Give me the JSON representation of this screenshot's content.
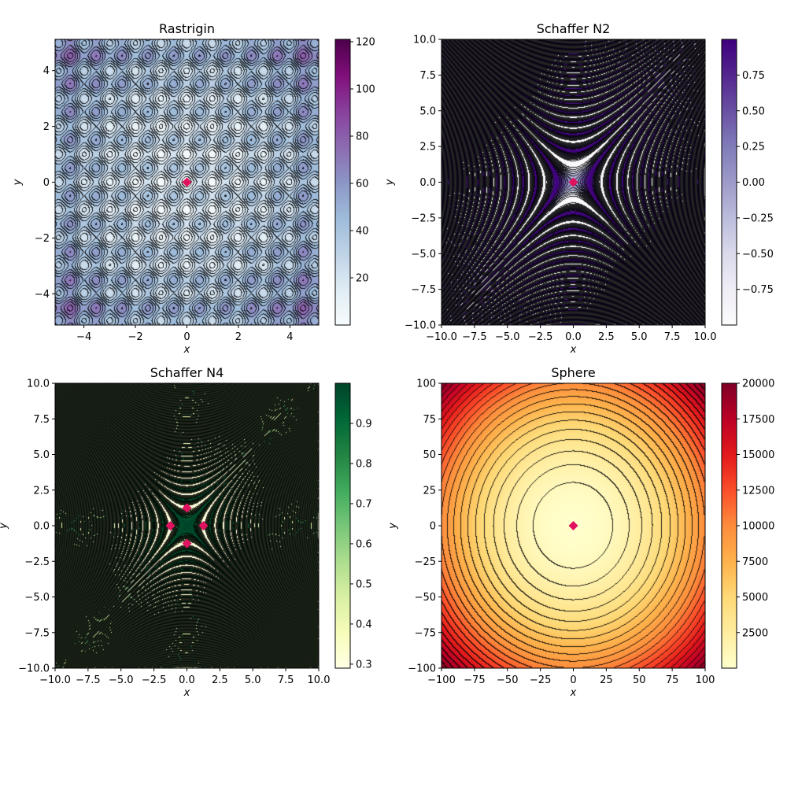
{
  "chart_data": [
    {
      "type": "heatmap",
      "title": "Rastrigin",
      "function": "rastrigin",
      "xlabel": "x",
      "ylabel": "y",
      "xlim": [
        -5.12,
        5.12
      ],
      "ylim": [
        -5.12,
        5.12
      ],
      "xticks": [
        -4,
        -2,
        0,
        2,
        4
      ],
      "xtick_labels": [
        "−4",
        "−2",
        "0",
        "2",
        "4"
      ],
      "yticks": [
        -4,
        -2,
        0,
        2,
        4
      ],
      "ytick_labels": [
        "−4",
        "−2",
        "0",
        "2",
        "4"
      ],
      "colormap": "BuPu",
      "colormap_stops": [
        "#f7fcfd",
        "#e0ecf4",
        "#bfd3e6",
        "#9ebcda",
        "#8c96c6",
        "#8c6bb1",
        "#88419d",
        "#810f7c",
        "#4d004b"
      ],
      "colorbar_range": [
        0,
        121
      ],
      "colorbar_ticks": [
        20,
        40,
        60,
        80,
        100,
        120
      ],
      "colorbar_tick_labels": [
        "20",
        "40",
        "60",
        "80",
        "100",
        "120"
      ],
      "contour_lines": true,
      "contour_levels": 20,
      "minima": [
        {
          "x": 0,
          "y": 0
        }
      ],
      "marker_color": "#e0115f"
    },
    {
      "type": "heatmap",
      "title": "Schaffer N2",
      "function": "schaffer2",
      "xlabel": "x",
      "ylabel": "y",
      "xlim": [
        -10,
        10
      ],
      "ylim": [
        -10,
        10
      ],
      "xticks": [
        -10,
        -7.5,
        -5,
        -2.5,
        0,
        2.5,
        5,
        7.5,
        10
      ],
      "xtick_labels": [
        "−10.0",
        "−7.5",
        "−5.0",
        "−2.5",
        "0.0",
        "2.5",
        "5.0",
        "7.5",
        "10.0"
      ],
      "yticks": [
        -10,
        -7.5,
        -5,
        -2.5,
        0,
        2.5,
        5,
        7.5,
        10
      ],
      "ytick_labels": [
        "−10.0",
        "−7.5",
        "−5.0",
        "−2.5",
        "0.0",
        "2.5",
        "5.0",
        "7.5",
        "10.0"
      ],
      "colormap": "Purples",
      "colormap_stops": [
        "#fcfbfd",
        "#efedf5",
        "#dadaeb",
        "#bcbddc",
        "#9e9ac8",
        "#807dba",
        "#6a51a3",
        "#54278f",
        "#3f007d"
      ],
      "colorbar_range": [
        -1,
        1
      ],
      "colorbar_ticks": [
        -0.75,
        -0.5,
        -0.25,
        0,
        0.25,
        0.5,
        0.75
      ],
      "colorbar_tick_labels": [
        "−0.75",
        "−0.50",
        "−0.25",
        "0.00",
        "0.25",
        "0.50",
        "0.75"
      ],
      "contour_lines": true,
      "contour_levels": 12,
      "minima": [
        {
          "x": 0,
          "y": 0
        }
      ],
      "marker_color": "#e0115f"
    },
    {
      "type": "heatmap",
      "title": "Schaffer N4",
      "function": "schaffer4",
      "xlabel": "x",
      "ylabel": "y",
      "xlim": [
        -10,
        10
      ],
      "ylim": [
        -10,
        10
      ],
      "xticks": [
        -10,
        -7.5,
        -5,
        -2.5,
        0,
        2.5,
        5,
        7.5,
        10
      ],
      "xtick_labels": [
        "−10.0",
        "−7.5",
        "−5.0",
        "−2.5",
        "0.0",
        "2.5",
        "5.0",
        "7.5",
        "10.0"
      ],
      "yticks": [
        -10,
        -7.5,
        -5,
        -2.5,
        0,
        2.5,
        5,
        7.5,
        10
      ],
      "ytick_labels": [
        "−10.0",
        "−7.5",
        "−5.0",
        "−2.5",
        "0.0",
        "2.5",
        "5.0",
        "7.5",
        "10.0"
      ],
      "colormap": "YlGn",
      "colormap_stops": [
        "#ffffe5",
        "#f7fcb9",
        "#d9f0a3",
        "#addd8e",
        "#78c679",
        "#41ab5d",
        "#238443",
        "#006837",
        "#004529"
      ],
      "colorbar_range": [
        0.29,
        1.0
      ],
      "colorbar_ticks": [
        0.3,
        0.4,
        0.5,
        0.6,
        0.7,
        0.8,
        0.9
      ],
      "colorbar_tick_labels": [
        "0.3",
        "0.4",
        "0.5",
        "0.6",
        "0.7",
        "0.8",
        "0.9"
      ],
      "contour_lines": true,
      "contour_levels": 10,
      "minima": [
        {
          "x": 0,
          "y": 1.253
        },
        {
          "x": 0,
          "y": -1.253
        },
        {
          "x": 1.253,
          "y": 0
        },
        {
          "x": -1.253,
          "y": 0
        }
      ],
      "marker_color": "#e0115f"
    },
    {
      "type": "heatmap",
      "title": "Sphere",
      "function": "sphere",
      "xlabel": "x",
      "ylabel": "y",
      "xlim": [
        -100,
        100
      ],
      "ylim": [
        -100,
        100
      ],
      "xticks": [
        -100,
        -75,
        -50,
        -25,
        0,
        25,
        50,
        75,
        100
      ],
      "xtick_labels": [
        "−100",
        "−75",
        "−50",
        "−25",
        "0",
        "25",
        "50",
        "75",
        "100"
      ],
      "yticks": [
        -100,
        -75,
        -50,
        -25,
        0,
        25,
        50,
        75,
        100
      ],
      "ytick_labels": [
        "−100",
        "−75",
        "−50",
        "−25",
        "0",
        "25",
        "50",
        "75",
        "100"
      ],
      "colormap": "YlOrRd",
      "colormap_stops": [
        "#ffffcc",
        "#ffeda0",
        "#fed976",
        "#feb24c",
        "#fd8d3c",
        "#fc4e2a",
        "#e31a1c",
        "#bd0026",
        "#800026"
      ],
      "colorbar_range": [
        0,
        20000
      ],
      "colorbar_ticks": [
        2500,
        5000,
        7500,
        10000,
        12500,
        15000,
        17500,
        20000
      ],
      "colorbar_tick_labels": [
        "2500",
        "5000",
        "7500",
        "10000",
        "12500",
        "15000",
        "17500",
        "20000"
      ],
      "contour_lines": true,
      "contour_levels": 22,
      "minima": [
        {
          "x": 0,
          "y": 0
        }
      ],
      "marker_color": "#e0115f"
    }
  ]
}
